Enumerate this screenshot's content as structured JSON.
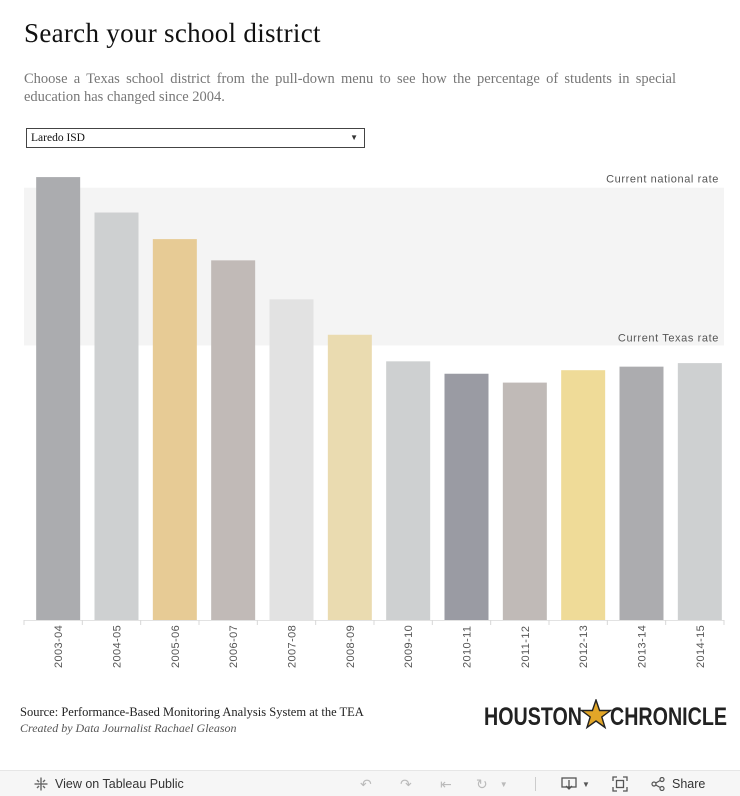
{
  "header": {
    "title": "Search your school district",
    "subtitle": "Choose a Texas school district from the pull-down menu to see how the percentage of students in special education has changed since 2004."
  },
  "filter": {
    "selected": "Laredo ISD"
  },
  "chart_data": {
    "type": "bar",
    "categories": [
      "2003-04",
      "2004-05",
      "2005-06",
      "2006-07",
      "2007-08",
      "2008-09",
      "2009-10",
      "2010-11",
      "2011-12",
      "2012-13",
      "2013-14",
      "2014-15"
    ],
    "values": [
      12.5,
      11.5,
      10.75,
      10.15,
      9.05,
      8.05,
      7.3,
      6.95,
      6.7,
      7.05,
      7.15,
      7.25
    ],
    "colors": [
      "#a7a8ab",
      "#cbcecf",
      "#e6c88f",
      "#beb6b3",
      "#e0e0e0",
      "#e9d9ac",
      "#cbcecf",
      "#95969e",
      "#bdb6b3",
      "#eed992",
      "#a8a8ab",
      "#cbcecf"
    ],
    "ylim": [
      0,
      12.7
    ],
    "reference_band": {
      "label_top": "Current national rate",
      "label_bottom": "Current Texas rate",
      "top_value": 12.2,
      "bottom_value": 7.75,
      "color": "#f4f4f4"
    },
    "title": "",
    "xlabel": "",
    "ylabel": "",
    "grid": false,
    "legend": "none"
  },
  "footer": {
    "source_label": "Source:",
    "source_text": "Performance-Based Monitoring Analysis System at the TEA",
    "credit": "Created by Data Journalist Rachael Gleason",
    "logo_text_left": "HOUSTON",
    "logo_text_right": "CHRONICLE"
  },
  "toolbar": {
    "view_label": "View on Tableau Public",
    "share_label": "Share",
    "icons": [
      "tableau-icon",
      "undo-icon",
      "redo-icon",
      "revert-icon",
      "refresh-icon",
      "download-icon",
      "fullscreen-icon",
      "share-icon"
    ]
  }
}
